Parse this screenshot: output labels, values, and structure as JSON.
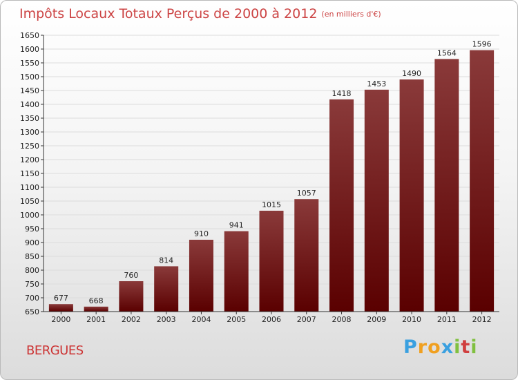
{
  "title": {
    "main": "Impôts Locaux Totaux Perçus de 2000 à 2012",
    "unit": "(en milliers d'€)"
  },
  "place_name": "BERGUES",
  "logo": {
    "letters": [
      "P",
      "r",
      "o",
      "x",
      "i",
      "t",
      "i"
    ],
    "colors": [
      "#3aa0e0",
      "#f0a020",
      "#f0a020",
      "#3aa0e0",
      "#80c040",
      "#d04040",
      "#80c040"
    ]
  },
  "colors": {
    "bar_top": "#8a3a3a",
    "bar_bottom": "#5a0000",
    "grid": "#dcdcdc"
  },
  "chart_data": {
    "type": "bar",
    "title": "Impôts Locaux Totaux Perçus de 2000 à 2012",
    "xlabel": "",
    "ylabel": "",
    "categories": [
      "2000",
      "2001",
      "2002",
      "2003",
      "2004",
      "2005",
      "2006",
      "2007",
      "2008",
      "2009",
      "2010",
      "2011",
      "2012"
    ],
    "values": [
      677,
      668,
      760,
      814,
      910,
      941,
      1015,
      1057,
      1418,
      1453,
      1490,
      1564,
      1596
    ],
    "ylim": [
      650,
      1650
    ],
    "ytick_step": 50,
    "grid": true
  }
}
